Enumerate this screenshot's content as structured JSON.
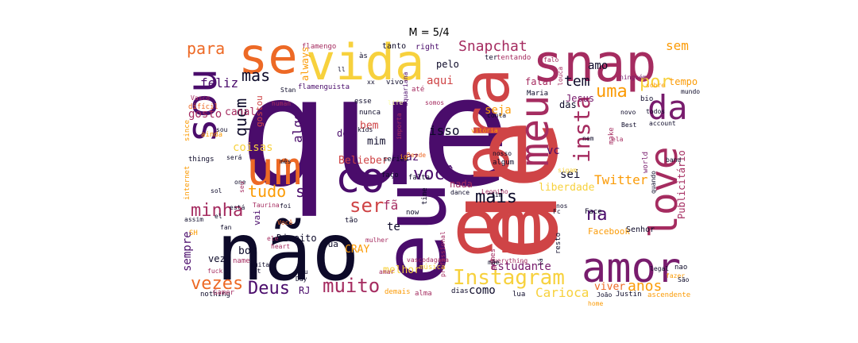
{
  "title": "M = 5/4",
  "colors": {
    "near_black": "#0d0a29",
    "deep_purple": "#4a0c6b",
    "plum": "#781c6d",
    "crimson": "#a52c60",
    "red": "#cf4446",
    "orange": "#ed6925",
    "amber": "#fb9b06",
    "yellow": "#f7d13d",
    "pale": "#fcffa4"
  },
  "words": [
    {
      "text": "que",
      "color": "deep_purple"
    },
    {
      "text": "de",
      "color": "red"
    },
    {
      "text": "não",
      "color": "near_black"
    },
    {
      "text": "eu",
      "color": "deep_purple"
    },
    {
      "text": "em",
      "color": "red"
    },
    {
      "text": "snap",
      "color": "crimson"
    },
    {
      "text": "pra",
      "color": "red"
    },
    {
      "text": "vida",
      "color": "yellow"
    },
    {
      "text": "se",
      "color": "orange"
    },
    {
      "text": "sou",
      "color": "deep_purple"
    },
    {
      "text": "um",
      "color": "orange"
    },
    {
      "text": "co",
      "color": "deep_purple"
    },
    {
      "text": "amor",
      "color": "plum"
    },
    {
      "text": "love",
      "color": "crimson"
    },
    {
      "text": "meu",
      "color": "crimson"
    },
    {
      "text": "da",
      "color": "plum"
    },
    {
      "text": "Instagram",
      "color": "yellow"
    },
    {
      "text": "insta",
      "color": "crimson"
    },
    {
      "text": "você",
      "color": "deep_purple"
    },
    {
      "text": "mais",
      "color": "near_black"
    },
    {
      "text": "minha",
      "color": "crimson"
    },
    {
      "text": "ser",
      "color": "red"
    },
    {
      "text": "muito",
      "color": "crimson"
    },
    {
      "text": "Deus",
      "color": "deep_purple"
    },
    {
      "text": "vezes",
      "color": "orange"
    },
    {
      "text": "tudo",
      "color": "amber"
    },
    {
      "text": "só",
      "color": "deep_purple"
    },
    {
      "text": "para",
      "color": "orange"
    },
    {
      "text": "mas",
      "color": "near_black"
    },
    {
      "text": "quem",
      "color": "near_black"
    },
    {
      "text": "Snapchat",
      "color": "crimson"
    },
    {
      "text": "uma",
      "color": "amber"
    },
    {
      "text": "tem",
      "color": "near_black"
    },
    {
      "text": "na",
      "color": "deep_purple"
    },
    {
      "text": "por",
      "color": "yellow"
    },
    {
      "text": "sem",
      "color": "amber"
    },
    {
      "text": "feliz",
      "color": "deep_purple"
    },
    {
      "text": "Twitter",
      "color": "amber"
    },
    {
      "text": "anos",
      "color": "amber"
    },
    {
      "text": "como",
      "color": "near_black"
    },
    {
      "text": "viver",
      "color": "orange"
    },
    {
      "text": "isso",
      "color": "near_black"
    },
    {
      "text": "aqui",
      "color": "red"
    },
    {
      "text": "algo",
      "color": "deep_purple"
    },
    {
      "text": "sempre",
      "color": "deep_purple"
    },
    {
      "text": "Estudante",
      "color": "plum"
    },
    {
      "text": "Carioca",
      "color": "yellow"
    },
    {
      "text": "fã",
      "color": "crimson"
    },
    {
      "text": "te",
      "color": "near_black"
    },
    {
      "text": "faz",
      "color": "deep_purple"
    },
    {
      "text": "mim",
      "color": "near_black"
    },
    {
      "text": "bem",
      "color": "red"
    },
    {
      "text": "seja",
      "color": "amber"
    },
    {
      "text": "amo",
      "color": "near_black"
    },
    {
      "text": "Jesus",
      "color": "plum"
    },
    {
      "text": "sei",
      "color": "near_black"
    },
    {
      "text": "vc",
      "color": "deep_purple"
    },
    {
      "text": "das",
      "color": "near_black"
    },
    {
      "text": "falar",
      "color": "crimson"
    },
    {
      "text": "tempo",
      "color": "amber"
    },
    {
      "text": "gosto",
      "color": "crimson"
    },
    {
      "text": "canal",
      "color": "crimson"
    },
    {
      "text": "coisas",
      "color": "yellow"
    },
    {
      "text": "Belieber",
      "color": "red"
    },
    {
      "text": "melhor",
      "color": "yellow"
    },
    {
      "text": "Direito",
      "color": "near_black"
    },
    {
      "text": "liberdade",
      "color": "yellow"
    },
    {
      "text": "nada",
      "color": "crimson"
    },
    {
      "text": "CRAY",
      "color": "amber"
    },
    {
      "text": "bom",
      "color": "near_black"
    },
    {
      "text": "RJ",
      "color": "deep_purple"
    },
    {
      "text": "Publicitário",
      "color": "crimson"
    },
    {
      "text": "Facebook",
      "color": "amber"
    },
    {
      "text": "Senhor",
      "color": "near_black"
    },
    {
      "text": "pelo",
      "color": "near_black"
    },
    {
      "text": "dos",
      "color": "deep_purple"
    },
    {
      "text": "sua",
      "color": "near_black"
    },
    {
      "text": "vai",
      "color": "deep_purple"
    },
    {
      "text": "gostou",
      "color": "red"
    },
    {
      "text": "right",
      "color": "deep_purple"
    },
    {
      "text": "tanto",
      "color": "near_black"
    },
    {
      "text": "flamengo",
      "color": "crimson"
    },
    {
      "text": "always",
      "color": "amber"
    },
    {
      "text": "às",
      "color": "near_black"
    },
    {
      "text": "ter",
      "color": "near_black"
    },
    {
      "text": "tentando",
      "color": "crimson"
    },
    {
      "text": "falo",
      "color": "crimson"
    },
    {
      "text": "louca",
      "color": "crimson"
    },
    {
      "text": "flamenguista",
      "color": "deep_purple"
    },
    {
      "text": "vivo",
      "color": "near_black"
    },
    {
      "text": "até",
      "color": "crimson"
    },
    {
      "text": "life",
      "color": "pale"
    },
    {
      "text": "aquariana",
      "color": "deep_purple"
    },
    {
      "text": "Maria",
      "color": "near_black"
    },
    {
      "text": "ninguém",
      "color": "plum"
    },
    {
      "text": "sobre",
      "color": "amber"
    },
    {
      "text": "bio",
      "color": "near_black"
    },
    {
      "text": "todos",
      "color": "near_black"
    },
    {
      "text": "mundo",
      "color": "near_black"
    },
    {
      "text": "account",
      "color": "near_black"
    },
    {
      "text": "Best",
      "color": "near_black"
    },
    {
      "text": "novo",
      "color": "near_black"
    },
    {
      "text": "make",
      "color": "crimson"
    },
    {
      "text": "nem",
      "color": "near_black"
    },
    {
      "text": "world",
      "color": "plum"
    },
    {
      "text": "band",
      "color": "near_black"
    },
    {
      "text": "Vasco",
      "color": "crimson"
    },
    {
      "text": "difícil",
      "color": "orange"
    },
    {
      "text": "since",
      "color": "amber"
    },
    {
      "text": "ainda",
      "color": "amber"
    },
    {
      "text": "things",
      "color": "near_black"
    },
    {
      "text": "será",
      "color": "near_black"
    },
    {
      "text": "internet",
      "color": "amber"
    },
    {
      "text": "one",
      "color": "near_black"
    },
    {
      "text": "sol",
      "color": "near_black"
    },
    {
      "text": "seu",
      "color": "crimson"
    },
    {
      "text": "esse",
      "color": "near_black"
    },
    {
      "text": "nunca",
      "color": "near_black"
    },
    {
      "text": "kids",
      "color": "near_black"
    },
    {
      "text": "importa",
      "color": "crimson"
    },
    {
      "text": "somos",
      "color": "crimson"
    },
    {
      "text": "conta",
      "color": "near_black"
    },
    {
      "text": "algum",
      "color": "near_black"
    },
    {
      "text": "nosso",
      "color": "near_black"
    },
    {
      "text": "sigam",
      "color": "yellow"
    },
    {
      "text": "series",
      "color": "near_black"
    },
    {
      "text": "faço",
      "color": "near_black"
    },
    {
      "text": "Desde",
      "color": "orange"
    },
    {
      "text": "falta",
      "color": "near_black"
    },
    {
      "text": "dance",
      "color": "near_black"
    },
    {
      "text": "Leonino",
      "color": "crimson"
    },
    {
      "text": "fim",
      "color": "near_black"
    },
    {
      "text": "time",
      "color": "near_black"
    },
    {
      "text": "now",
      "color": "near_black"
    },
    {
      "text": "nos",
      "color": "near_black"
    },
    {
      "text": "Fc",
      "color": "near_black"
    },
    {
      "text": "Face",
      "color": "near_black"
    },
    {
      "text": "tão",
      "color": "near_black"
    },
    {
      "text": "foi",
      "color": "near_black"
    },
    {
      "text": "ele",
      "color": "crimson"
    },
    {
      "text": "Taurina",
      "color": "crimson"
    },
    {
      "text": "está",
      "color": "near_black"
    },
    {
      "text": "el",
      "color": "near_black"
    },
    {
      "text": "fan",
      "color": "near_black"
    },
    {
      "text": "Você",
      "color": "orange"
    },
    {
      "text": "heart",
      "color": "crimson"
    },
    {
      "text": "mulher",
      "color": "crimson"
    },
    {
      "text": "vascodagama",
      "color": "crimson"
    },
    {
      "text": "profissional",
      "color": "crimson"
    },
    {
      "text": "games",
      "color": "crimson"
    },
    {
      "text": "resto",
      "color": "near_black"
    },
    {
      "text": "lá",
      "color": "near_black"
    },
    {
      "text": "everything",
      "color": "crimson"
    },
    {
      "text": "quando",
      "color": "near_black"
    },
    {
      "text": "legal",
      "color": "near_black"
    },
    {
      "text": "nao",
      "color": "near_black"
    },
    {
      "text": "fazer",
      "color": "amber"
    },
    {
      "text": "São",
      "color": "near_black"
    },
    {
      "text": "SH",
      "color": "amber"
    },
    {
      "text": "vez",
      "color": "near_black"
    },
    {
      "text": "name",
      "color": "crimson"
    },
    {
      "text": "fuck",
      "color": "crimson"
    },
    {
      "text": "muita",
      "color": "near_black"
    },
    {
      "text": "got",
      "color": "near_black"
    },
    {
      "text": "tu",
      "color": "near_black"
    },
    {
      "text": "amar",
      "color": "crimson"
    },
    {
      "text": "Day",
      "color": "near_black"
    },
    {
      "text": "música",
      "color": "yellow"
    },
    {
      "text": "mãe",
      "color": "near_black"
    },
    {
      "text": "nothing",
      "color": "near_black"
    },
    {
      "text": "Gamer",
      "color": "crimson"
    },
    {
      "text": "demais",
      "color": "amber"
    },
    {
      "text": "alma",
      "color": "crimson"
    },
    {
      "text": "dias",
      "color": "near_black"
    },
    {
      "text": "lua",
      "color": "near_black"
    },
    {
      "text": "João",
      "color": "near_black"
    },
    {
      "text": "Justin",
      "color": "near_black"
    },
    {
      "text": "ascendente",
      "color": "amber"
    },
    {
      "text": "home",
      "color": "amber"
    },
    {
      "text": "ela",
      "color": "crimson"
    },
    {
      "text": "vitória",
      "color": "amber"
    },
    {
      "text": "ll",
      "color": "near_black"
    },
    {
      "text": "xx",
      "color": "near_black"
    },
    {
      "text": "Stan",
      "color": "near_black"
    },
    {
      "text": "human",
      "color": "crimson"
    },
    {
      "text": "ig",
      "color": "amber"
    },
    {
      "text": "mês",
      "color": "near_black"
    },
    {
      "text": "assim",
      "color": "near_black"
    },
    {
      "text": "sou",
      "color": "near_black"
    }
  ]
}
